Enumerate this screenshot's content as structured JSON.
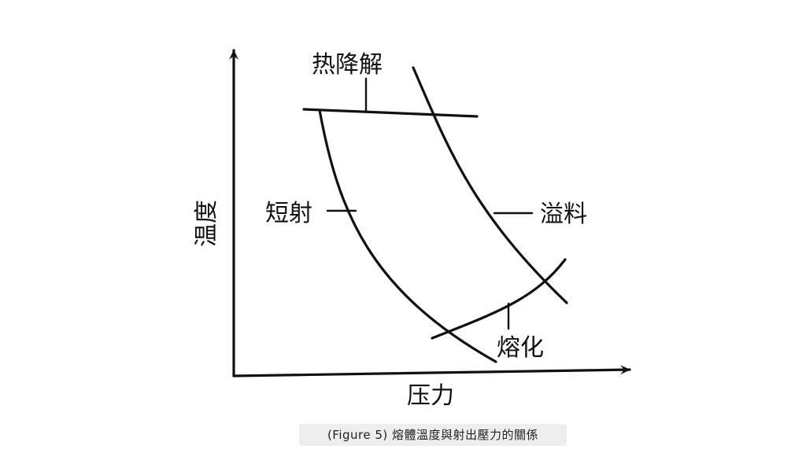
{
  "diagram": {
    "labels": {
      "thermal_degradation": "热降解",
      "short_shot": "短射",
      "flash": "溢料",
      "melting": "熔化",
      "y_axis": "温度",
      "x_axis": "压力"
    },
    "line_color": "#111111"
  },
  "caption": "(Figure 5)  熔體溫度與射出壓力的關係"
}
